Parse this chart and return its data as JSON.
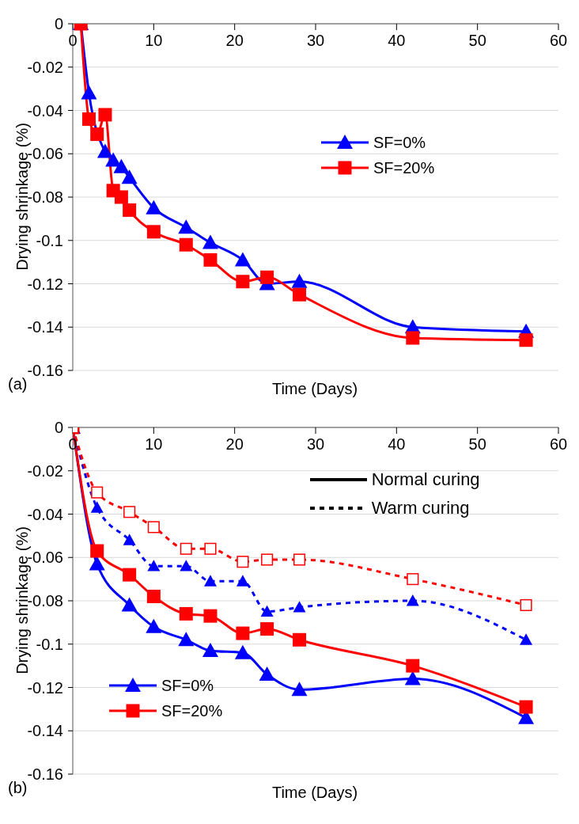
{
  "chart_data": [
    {
      "type": "line",
      "xlabel": "Time (Days)",
      "ylabel": "Drying shrinkage (%)",
      "xlim": [
        0,
        60
      ],
      "xticks": [
        0,
        10,
        20,
        30,
        40,
        50,
        60
      ],
      "ylim": [
        -0.16,
        0
      ],
      "yticks": [
        0,
        -0.02,
        -0.04,
        -0.06,
        -0.08,
        -0.1,
        -0.12,
        -0.14,
        -0.16
      ],
      "grid": "y",
      "legend": "top right",
      "annotations": [
        "(a)"
      ],
      "series": [
        {
          "name": "SF=0%",
          "color": "#0000ff",
          "marker": "triangle",
          "line_style": "solid",
          "x": [
            1,
            2,
            3,
            4,
            5,
            6,
            7,
            10,
            14,
            17,
            21,
            24,
            28,
            42,
            56
          ],
          "values": [
            0,
            -0.032,
            null,
            -0.059,
            -0.063,
            -0.066,
            -0.071,
            -0.085,
            -0.094,
            -0.101,
            -0.109,
            -0.12,
            -0.119,
            -0.14,
            -0.142
          ]
        },
        {
          "name": "SF=20%",
          "color": "#ff0000",
          "marker": "square",
          "line_style": "solid",
          "x": [
            1,
            2,
            3,
            4,
            5,
            6,
            7,
            10,
            14,
            17,
            21,
            24,
            28,
            42,
            56
          ],
          "values": [
            0,
            -0.044,
            -0.051,
            -0.042,
            -0.077,
            -0.08,
            -0.086,
            -0.096,
            -0.102,
            -0.109,
            -0.119,
            -0.117,
            -0.125,
            -0.145,
            -0.146
          ]
        }
      ]
    },
    {
      "type": "line",
      "xlabel": "Time (Days)",
      "ylabel": "Drying shrinkage (%)",
      "xlim": [
        0,
        60
      ],
      "xticks": [
        0,
        10,
        20,
        30,
        40,
        50,
        60
      ],
      "ylim": [
        -0.16,
        0
      ],
      "yticks": [
        0,
        -0.02,
        -0.04,
        -0.06,
        -0.08,
        -0.1,
        -0.12,
        -0.14,
        -0.16
      ],
      "grid": "y",
      "legend": "bottom left",
      "annotations": [
        "(b)",
        "Normal curing",
        "Warm curing"
      ],
      "series": [
        {
          "name": "SF=0%",
          "color": "#0000ff",
          "marker": "triangle",
          "line_style": "solid",
          "x": [
            0,
            3,
            7,
            10,
            14,
            17,
            21,
            24,
            28,
            42,
            56
          ],
          "values": [
            0,
            -0.063,
            -0.082,
            -0.092,
            -0.098,
            -0.103,
            -0.104,
            -0.114,
            -0.121,
            -0.116,
            -0.134
          ]
        },
        {
          "name": "SF=20%",
          "color": "#ff0000",
          "marker": "square",
          "line_style": "solid",
          "x": [
            0,
            3,
            7,
            10,
            14,
            17,
            21,
            24,
            28,
            42,
            56
          ],
          "values": [
            0,
            -0.057,
            -0.068,
            -0.078,
            -0.086,
            -0.087,
            -0.095,
            -0.093,
            -0.098,
            -0.11,
            -0.129
          ]
        },
        {
          "color": "#0000ff",
          "marker": "triangle",
          "line_style": "dashed",
          "x": [
            0,
            3,
            7,
            10,
            14,
            17,
            21,
            24,
            28,
            42,
            56
          ],
          "values": [
            0,
            -0.037,
            -0.052,
            -0.064,
            -0.064,
            -0.071,
            -0.071,
            -0.085,
            -0.083,
            -0.08,
            -0.098
          ]
        },
        {
          "color": "#ff0000",
          "marker": "square",
          "line_style": "dashed",
          "x": [
            0,
            3,
            7,
            10,
            14,
            17,
            21,
            24,
            28,
            42,
            56
          ],
          "values": [
            0,
            -0.03,
            -0.039,
            -0.046,
            -0.056,
            -0.056,
            -0.062,
            -0.061,
            -0.061,
            -0.07,
            -0.082
          ]
        }
      ]
    }
  ]
}
